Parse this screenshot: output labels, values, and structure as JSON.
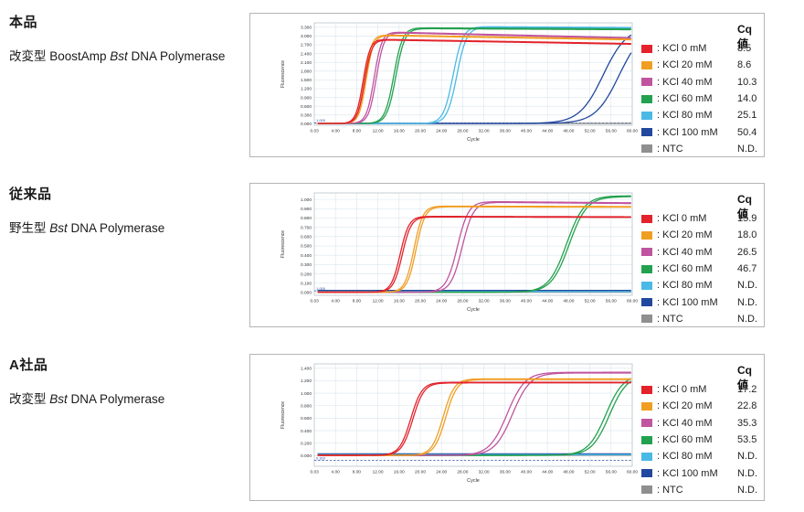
{
  "page": {
    "background": "#ffffff"
  },
  "panels": [
    {
      "heading": "本品",
      "subtitle_prefix": "改変型 BoostAmp ",
      "subtitle_italic": "Bst",
      "subtitle_suffix": " DNA Polymerase",
      "legend_header": "Cq値",
      "legend": [
        {
          "label": ": KCl 0 mM",
          "cq": "8.5",
          "color": "#e3222b"
        },
        {
          "label": ": KCl 20 mM",
          "cq": "8.6",
          "color": "#f09e23"
        },
        {
          "label": ": KCl 40 mM",
          "cq": "10.3",
          "color": "#c0549f"
        },
        {
          "label": ": KCl 60 mM",
          "cq": "14.0",
          "color": "#23a14f"
        },
        {
          "label": ": KCl 80 mM",
          "cq": "25.1",
          "color": "#4ab9e6"
        },
        {
          "label": ": KCl 100 mM",
          "cq": "50.4",
          "color": "#22479e"
        },
        {
          "label": ": NTC",
          "cq": "N.D.",
          "color": "#8f8f8f"
        }
      ]
    },
    {
      "heading": "従来品",
      "subtitle_prefix": "野生型 ",
      "subtitle_italic": "Bst",
      "subtitle_suffix": " DNA Polymerase",
      "legend_header": "Cq値",
      "legend": [
        {
          "label": ": KCl 0 mM",
          "cq": "15.9",
          "color": "#e3222b"
        },
        {
          "label": ": KCl 20 mM",
          "cq": "18.0",
          "color": "#f09e23"
        },
        {
          "label": ": KCl 40 mM",
          "cq": "26.5",
          "color": "#c0549f"
        },
        {
          "label": ": KCl 60 mM",
          "cq": "46.7",
          "color": "#23a14f"
        },
        {
          "label": ": KCl 80 mM",
          "cq": "N.D.",
          "color": "#4ab9e6"
        },
        {
          "label": ": KCl 100 mM",
          "cq": "N.D.",
          "color": "#22479e"
        },
        {
          "label": ": NTC",
          "cq": "N.D.",
          "color": "#8f8f8f"
        }
      ]
    },
    {
      "heading": "A社品",
      "subtitle_prefix": "改変型 ",
      "subtitle_italic": "Bst",
      "subtitle_suffix": " DNA Polymerase",
      "legend_header": "Cq値",
      "legend": [
        {
          "label": ": KCl 0 mM",
          "cq": "17.2",
          "color": "#e3222b"
        },
        {
          "label": ": KCl 20 mM",
          "cq": "22.8",
          "color": "#f09e23"
        },
        {
          "label": ": KCl 40 mM",
          "cq": "35.3",
          "color": "#c0549f"
        },
        {
          "label": ": KCl 60 mM",
          "cq": "53.5",
          "color": "#23a14f"
        },
        {
          "label": ": KCl 80 mM",
          "cq": "N.D.",
          "color": "#4ab9e6"
        },
        {
          "label": ": KCl 100 mM",
          "cq": "N.D.",
          "color": "#22479e"
        },
        {
          "label": ": NTC",
          "cq": "N.D.",
          "color": "#8f8f8f"
        }
      ]
    }
  ],
  "chart_data": [
    {
      "type": "line",
      "title": "本品 改変型 BoostAmp Bst DNA Polymerase",
      "xlabel": "Cycle",
      "ylabel": "Fluorescence",
      "xlim": [
        0.03,
        60
      ],
      "x_ticks": [
        0.03,
        4,
        8,
        12,
        16,
        20,
        24,
        28,
        32,
        36,
        40,
        44,
        48,
        52,
        56,
        60
      ],
      "y_tick_max": 3.3,
      "y_tick_step": 0.3,
      "y_display": [
        -0.05,
        3.45
      ],
      "grid": true,
      "legend_position": "right",
      "threshold": {
        "value": 0.03,
        "label": "1.000"
      },
      "series": [
        {
          "name": "KCl 0 mM",
          "color": "#e3222b",
          "cq": 8.5,
          "kind": "sigmoid",
          "mids": [
            9.2,
            9.5
          ],
          "k": 1.5,
          "plateau": 2.88,
          "end": 2.73
        },
        {
          "name": "KCl 20 mM",
          "color": "#f09e23",
          "cq": 8.6,
          "kind": "sigmoid",
          "mids": [
            9.5,
            9.8
          ],
          "k": 1.5,
          "plateau": 3.03,
          "end": 2.88
        },
        {
          "name": "KCl 40 mM",
          "color": "#c0549f",
          "cq": 10.3,
          "kind": "sigmoid",
          "mids": [
            11.3,
            11.7
          ],
          "k": 1.4,
          "plateau": 3.13,
          "end": 2.93
        },
        {
          "name": "KCl 60 mM",
          "color": "#23a14f",
          "cq": 14.0,
          "kind": "sigmoid",
          "mids": [
            15.0,
            15.4
          ],
          "k": 1.2,
          "plateau": 3.27,
          "end": 3.23
        },
        {
          "name": "KCl 80 mM",
          "color": "#4ab9e6",
          "cq": 25.1,
          "kind": "sigmoid",
          "mids": [
            26.2,
            26.9
          ],
          "k": 1.1,
          "plateau": 3.31,
          "end": 3.28
        },
        {
          "name": "KCl 100 mM",
          "color": "#22479e",
          "cq": 50.4,
          "kind": "sigmoid",
          "mids": [
            54.5,
            57.5
          ],
          "k": 0.45,
          "plateau": 3.3
        },
        {
          "name": "NTC",
          "color": "#8f8f8f",
          "cq": "N.D.",
          "kind": "flat",
          "level": 0.012
        }
      ]
    },
    {
      "type": "line",
      "title": "従来品 野生型 Bst DNA Polymerase",
      "xlabel": "Cycle",
      "ylabel": "Fluorescence",
      "xlim": [
        0.03,
        60
      ],
      "x_ticks": [
        0.03,
        4,
        8,
        12,
        16,
        20,
        24,
        28,
        32,
        36,
        40,
        44,
        48,
        52,
        56,
        60
      ],
      "y_tick_max": 1.0,
      "y_tick_step": 0.1,
      "y_display": [
        -0.03,
        1.07
      ],
      "grid": true,
      "legend_position": "right",
      "threshold": {
        "value": 0.018,
        "label": "1.000"
      },
      "series": [
        {
          "name": "KCl 0 mM",
          "color": "#e3222b",
          "cq": 15.9,
          "kind": "sigmoid",
          "mids": [
            16.2,
            16.6
          ],
          "k": 1.2,
          "plateau": 0.815,
          "end": 0.81
        },
        {
          "name": "KCl 20 mM",
          "color": "#f09e23",
          "cq": 18.0,
          "kind": "sigmoid",
          "mids": [
            18.8,
            19.2
          ],
          "k": 1.2,
          "plateau": 0.925,
          "end": 0.92
        },
        {
          "name": "KCl 40 mM",
          "color": "#c0549f",
          "cq": 26.5,
          "kind": "sigmoid",
          "mids": [
            27.0,
            27.9
          ],
          "k": 0.95,
          "plateau": 0.975,
          "end": 0.96
        },
        {
          "name": "KCl 60 mM",
          "color": "#23a14f",
          "cq": 46.7,
          "kind": "sigmoid",
          "mids": [
            47.6,
            48.1
          ],
          "k": 0.6,
          "plateau": 1.035
        },
        {
          "name": "KCl 80 mM",
          "color": "#4ab9e6",
          "cq": "N.D.",
          "kind": "flat",
          "level": 0.01
        },
        {
          "name": "KCl 100 mM",
          "color": "#22479e",
          "cq": "N.D.",
          "kind": "flat",
          "level": 0.022
        },
        {
          "name": "NTC",
          "color": "#8f8f8f",
          "cq": "N.D.",
          "kind": "flat",
          "level": 0.004
        }
      ]
    },
    {
      "type": "line",
      "title": "A社品 改変型 Bst DNA Polymerase",
      "xlabel": "Cycle",
      "ylabel": "Fluorescence",
      "xlim": [
        0.03,
        60
      ],
      "x_ticks": [
        0.03,
        4,
        8,
        12,
        16,
        20,
        24,
        28,
        32,
        36,
        40,
        44,
        48,
        52,
        56,
        60
      ],
      "y_tick_max": 1.4,
      "y_tick_step": 0.2,
      "y_display": [
        -0.17,
        1.47
      ],
      "grid": true,
      "legend_position": "right",
      "threshold": {
        "value": -0.075,
        "label": "0.300"
      },
      "series": [
        {
          "name": "KCl 0 mM",
          "color": "#e3222b",
          "cq": 17.2,
          "kind": "sigmoid",
          "mids": [
            18.2,
            18.6
          ],
          "k": 0.95,
          "plateau": 1.17
        },
        {
          "name": "KCl 20 mM",
          "color": "#f09e23",
          "cq": 22.8,
          "kind": "sigmoid",
          "mids": [
            24.3,
            24.8
          ],
          "k": 0.95,
          "plateau": 1.225
        },
        {
          "name": "KCl 40 mM",
          "color": "#c0549f",
          "cq": 35.3,
          "kind": "sigmoid",
          "mids": [
            36.4,
            37.4
          ],
          "k": 0.6,
          "plateau": 1.33
        },
        {
          "name": "KCl 60 mM",
          "color": "#23a14f",
          "cq": 53.5,
          "kind": "sigmoid",
          "mids": [
            55.0,
            55.7
          ],
          "k": 0.6,
          "plateau": 1.3
        },
        {
          "name": "KCl 80 mM",
          "color": "#4ab9e6",
          "cq": "N.D.",
          "kind": "flat",
          "level": 0.016
        },
        {
          "name": "KCl 100 mM",
          "color": "#22479e",
          "cq": "N.D.",
          "kind": "flat",
          "level": 0.03
        },
        {
          "name": "NTC",
          "color": "#8f8f8f",
          "cq": "N.D.",
          "kind": "flat",
          "level": 0.006
        }
      ]
    }
  ]
}
